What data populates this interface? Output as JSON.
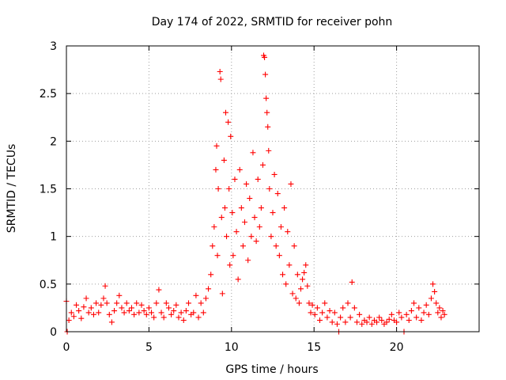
{
  "chart_data": {
    "type": "scatter",
    "title": "Day 174 of 2022, SRMTID for receiver pohn",
    "xlabel": "GPS time / hours",
    "ylabel": "SRMTID / TECUs",
    "xlim": [
      0,
      25
    ],
    "ylim": [
      0,
      3
    ],
    "xticks": [
      0,
      5,
      10,
      15,
      20
    ],
    "yticks": [
      0,
      0.5,
      1,
      1.5,
      2,
      2.5,
      3
    ],
    "xtick_labels": [
      "0",
      "5",
      "10",
      "15",
      "20"
    ],
    "ytick_labels": [
      "0",
      "0.5",
      "1",
      "1.5",
      "2",
      "2.5",
      "3"
    ],
    "grid": true,
    "marker": "+",
    "color": "#ff0000",
    "series": [
      {
        "name": "SRMTID",
        "points": [
          [
            0.0,
            0.32
          ],
          [
            0.05,
            0.0
          ],
          [
            0.15,
            0.12
          ],
          [
            0.3,
            0.2
          ],
          [
            0.45,
            0.16
          ],
          [
            0.6,
            0.28
          ],
          [
            0.75,
            0.22
          ],
          [
            0.9,
            0.14
          ],
          [
            1.05,
            0.26
          ],
          [
            1.2,
            0.35
          ],
          [
            1.35,
            0.2
          ],
          [
            1.5,
            0.25
          ],
          [
            1.65,
            0.18
          ],
          [
            1.8,
            0.3
          ],
          [
            1.95,
            0.2
          ],
          [
            2.1,
            0.28
          ],
          [
            2.25,
            0.35
          ],
          [
            2.35,
            0.48
          ],
          [
            2.45,
            0.3
          ],
          [
            2.6,
            0.18
          ],
          [
            2.75,
            0.1
          ],
          [
            2.9,
            0.22
          ],
          [
            3.05,
            0.3
          ],
          [
            3.2,
            0.38
          ],
          [
            3.35,
            0.25
          ],
          [
            3.5,
            0.2
          ],
          [
            3.65,
            0.3
          ],
          [
            3.8,
            0.22
          ],
          [
            3.95,
            0.25
          ],
          [
            4.1,
            0.18
          ],
          [
            4.25,
            0.3
          ],
          [
            4.4,
            0.2
          ],
          [
            4.55,
            0.28
          ],
          [
            4.7,
            0.22
          ],
          [
            4.85,
            0.18
          ],
          [
            5.0,
            0.25
          ],
          [
            5.15,
            0.2
          ],
          [
            5.3,
            0.15
          ],
          [
            5.45,
            0.3
          ],
          [
            5.6,
            0.44
          ],
          [
            5.75,
            0.2
          ],
          [
            5.9,
            0.15
          ],
          [
            6.05,
            0.3
          ],
          [
            6.2,
            0.25
          ],
          [
            6.35,
            0.18
          ],
          [
            6.5,
            0.22
          ],
          [
            6.65,
            0.28
          ],
          [
            6.8,
            0.15
          ],
          [
            6.95,
            0.2
          ],
          [
            7.1,
            0.12
          ],
          [
            7.25,
            0.22
          ],
          [
            7.4,
            0.3
          ],
          [
            7.55,
            0.18
          ],
          [
            7.7,
            0.2
          ],
          [
            7.85,
            0.38
          ],
          [
            8.0,
            0.15
          ],
          [
            8.15,
            0.3
          ],
          [
            8.3,
            0.2
          ],
          [
            8.45,
            0.35
          ],
          [
            8.6,
            0.45
          ],
          [
            8.75,
            0.6
          ],
          [
            8.85,
            0.9
          ],
          [
            8.95,
            1.1
          ],
          [
            9.05,
            1.7
          ],
          [
            9.1,
            1.95
          ],
          [
            9.15,
            0.8
          ],
          [
            9.2,
            1.5
          ],
          [
            9.3,
            2.73
          ],
          [
            9.35,
            2.65
          ],
          [
            9.4,
            1.2
          ],
          [
            9.45,
            0.4
          ],
          [
            9.55,
            1.8
          ],
          [
            9.6,
            1.3
          ],
          [
            9.65,
            2.3
          ],
          [
            9.7,
            1.0
          ],
          [
            9.8,
            2.2
          ],
          [
            9.85,
            1.5
          ],
          [
            9.9,
            0.7
          ],
          [
            9.95,
            2.05
          ],
          [
            10.05,
            1.25
          ],
          [
            10.1,
            0.8
          ],
          [
            10.2,
            1.6
          ],
          [
            10.3,
            1.05
          ],
          [
            10.4,
            0.55
          ],
          [
            10.5,
            1.7
          ],
          [
            10.6,
            1.3
          ],
          [
            10.7,
            0.9
          ],
          [
            10.8,
            1.15
          ],
          [
            10.9,
            1.55
          ],
          [
            11.0,
            0.75
          ],
          [
            11.1,
            1.4
          ],
          [
            11.2,
            1.0
          ],
          [
            11.3,
            1.88
          ],
          [
            11.4,
            1.2
          ],
          [
            11.5,
            0.95
          ],
          [
            11.6,
            1.6
          ],
          [
            11.7,
            1.1
          ],
          [
            11.8,
            1.3
          ],
          [
            11.9,
            1.75
          ],
          [
            11.95,
            2.9
          ],
          [
            12.0,
            2.88
          ],
          [
            12.05,
            2.7
          ],
          [
            12.1,
            2.45
          ],
          [
            12.15,
            2.3
          ],
          [
            12.2,
            2.15
          ],
          [
            12.25,
            1.9
          ],
          [
            12.3,
            1.5
          ],
          [
            12.4,
            1.0
          ],
          [
            12.5,
            1.25
          ],
          [
            12.6,
            1.65
          ],
          [
            12.7,
            0.9
          ],
          [
            12.8,
            1.45
          ],
          [
            12.9,
            0.8
          ],
          [
            13.0,
            1.1
          ],
          [
            13.1,
            0.6
          ],
          [
            13.2,
            1.3
          ],
          [
            13.3,
            0.5
          ],
          [
            13.4,
            1.05
          ],
          [
            13.5,
            0.7
          ],
          [
            13.6,
            1.55
          ],
          [
            13.7,
            0.4
          ],
          [
            13.8,
            0.9
          ],
          [
            13.9,
            0.35
          ],
          [
            14.0,
            0.6
          ],
          [
            14.1,
            0.3
          ],
          [
            14.2,
            0.45
          ],
          [
            14.3,
            0.55
          ],
          [
            14.4,
            0.62
          ],
          [
            14.5,
            0.7
          ],
          [
            14.6,
            0.48
          ],
          [
            14.7,
            0.3
          ],
          [
            14.8,
            0.2
          ],
          [
            14.9,
            0.28
          ],
          [
            15.05,
            0.18
          ],
          [
            15.2,
            0.25
          ],
          [
            15.35,
            0.12
          ],
          [
            15.5,
            0.2
          ],
          [
            15.65,
            0.3
          ],
          [
            15.8,
            0.15
          ],
          [
            15.95,
            0.22
          ],
          [
            16.1,
            0.1
          ],
          [
            16.25,
            0.2
          ],
          [
            16.4,
            0.08
          ],
          [
            16.5,
            0.0
          ],
          [
            16.6,
            0.15
          ],
          [
            16.75,
            0.25
          ],
          [
            16.9,
            0.1
          ],
          [
            17.05,
            0.3
          ],
          [
            17.2,
            0.15
          ],
          [
            17.3,
            0.52
          ],
          [
            17.45,
            0.25
          ],
          [
            17.6,
            0.1
          ],
          [
            17.75,
            0.18
          ],
          [
            17.9,
            0.08
          ],
          [
            18.05,
            0.12
          ],
          [
            18.2,
            0.1
          ],
          [
            18.35,
            0.15
          ],
          [
            18.5,
            0.08
          ],
          [
            18.65,
            0.12
          ],
          [
            18.8,
            0.1
          ],
          [
            18.95,
            0.15
          ],
          [
            19.1,
            0.12
          ],
          [
            19.25,
            0.08
          ],
          [
            19.4,
            0.1
          ],
          [
            19.55,
            0.13
          ],
          [
            19.7,
            0.18
          ],
          [
            19.85,
            0.12
          ],
          [
            20.0,
            0.1
          ],
          [
            20.15,
            0.2
          ],
          [
            20.3,
            0.15
          ],
          [
            20.45,
            0.0
          ],
          [
            20.6,
            0.18
          ],
          [
            20.75,
            0.12
          ],
          [
            20.9,
            0.22
          ],
          [
            21.05,
            0.3
          ],
          [
            21.2,
            0.15
          ],
          [
            21.35,
            0.25
          ],
          [
            21.5,
            0.12
          ],
          [
            21.65,
            0.2
          ],
          [
            21.8,
            0.28
          ],
          [
            21.95,
            0.18
          ],
          [
            22.1,
            0.35
          ],
          [
            22.2,
            0.5
          ],
          [
            22.3,
            0.42
          ],
          [
            22.4,
            0.3
          ],
          [
            22.5,
            0.2
          ],
          [
            22.6,
            0.25
          ],
          [
            22.7,
            0.15
          ],
          [
            22.8,
            0.22
          ],
          [
            22.9,
            0.18
          ]
        ]
      }
    ]
  }
}
